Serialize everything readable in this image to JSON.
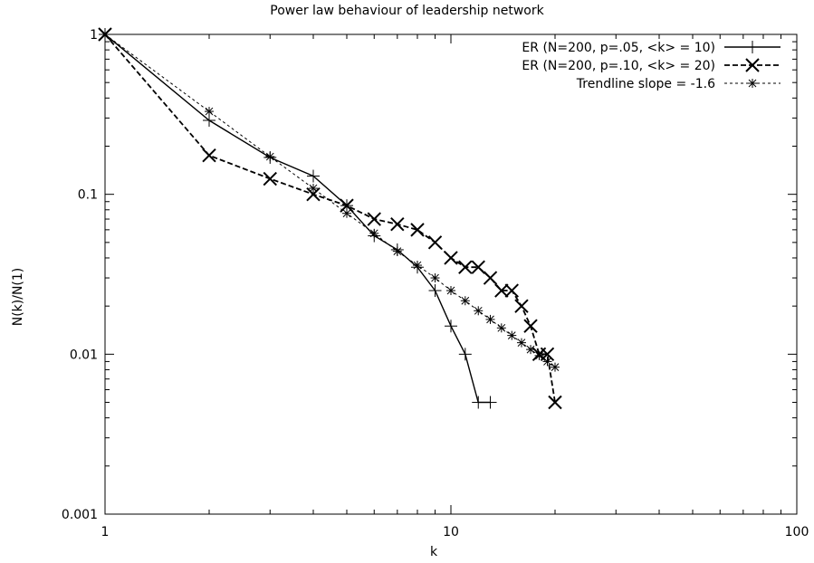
{
  "chart_data": {
    "type": "line",
    "title": "Power law behaviour of leadership network",
    "xlabel": "k",
    "ylabel": "N(k)/N(1)",
    "xscale": "log",
    "yscale": "log",
    "xlim": [
      1,
      100
    ],
    "ylim": [
      0.001,
      1
    ],
    "x_ticks": [
      {
        "v": 1,
        "label": "1"
      },
      {
        "v": 10,
        "label": "10"
      },
      {
        "v": 100,
        "label": "100"
      }
    ],
    "y_ticks": [
      {
        "v": 1,
        "label": "1"
      },
      {
        "v": 0.1,
        "label": "0.1"
      },
      {
        "v": 0.01,
        "label": "0.01"
      },
      {
        "v": 0.001,
        "label": "0.001"
      }
    ],
    "grid": false,
    "legend_position": "top-right",
    "series": [
      {
        "name": "ER (N=200, p=.05, <k> = 10)",
        "line": "solid",
        "marker": "plus",
        "color": "#000000",
        "x": [
          1,
          2,
          3,
          4,
          5,
          6,
          7,
          8,
          9,
          10,
          11,
          12,
          13
        ],
        "y": [
          1,
          0.29,
          0.17,
          0.13,
          0.085,
          0.055,
          0.045,
          0.035,
          0.025,
          0.015,
          0.01,
          0.005,
          0.005
        ]
      },
      {
        "name": "ER (N=200, p=.10, <k> = 20)",
        "line": "dashed",
        "marker": "cross",
        "color": "#000000",
        "x": [
          1,
          2,
          3,
          4,
          5,
          6,
          7,
          8,
          9,
          10,
          11,
          12,
          13,
          14,
          15,
          16,
          17,
          18,
          19,
          20
        ],
        "y": [
          1,
          0.175,
          0.125,
          0.1,
          0.085,
          0.07,
          0.065,
          0.06,
          0.05,
          0.04,
          0.035,
          0.035,
          0.03,
          0.025,
          0.025,
          0.02,
          0.015,
          0.01,
          0.01,
          0.005
        ]
      },
      {
        "name": "Trendline slope = -1.6",
        "line": "dotted",
        "marker": "star",
        "color": "#000000",
        "x": [
          1,
          2,
          3,
          4,
          5,
          6,
          7,
          8,
          9,
          10,
          11,
          12,
          13,
          14,
          15,
          16,
          17,
          18,
          19,
          20
        ],
        "y": [
          1,
          0.33,
          0.172,
          0.109,
          0.076,
          0.057,
          0.044,
          0.036,
          0.03,
          0.025,
          0.0216,
          0.0187,
          0.0165,
          0.0146,
          0.0131,
          0.0118,
          0.0107,
          0.0098,
          0.009,
          0.0083
        ]
      }
    ]
  }
}
